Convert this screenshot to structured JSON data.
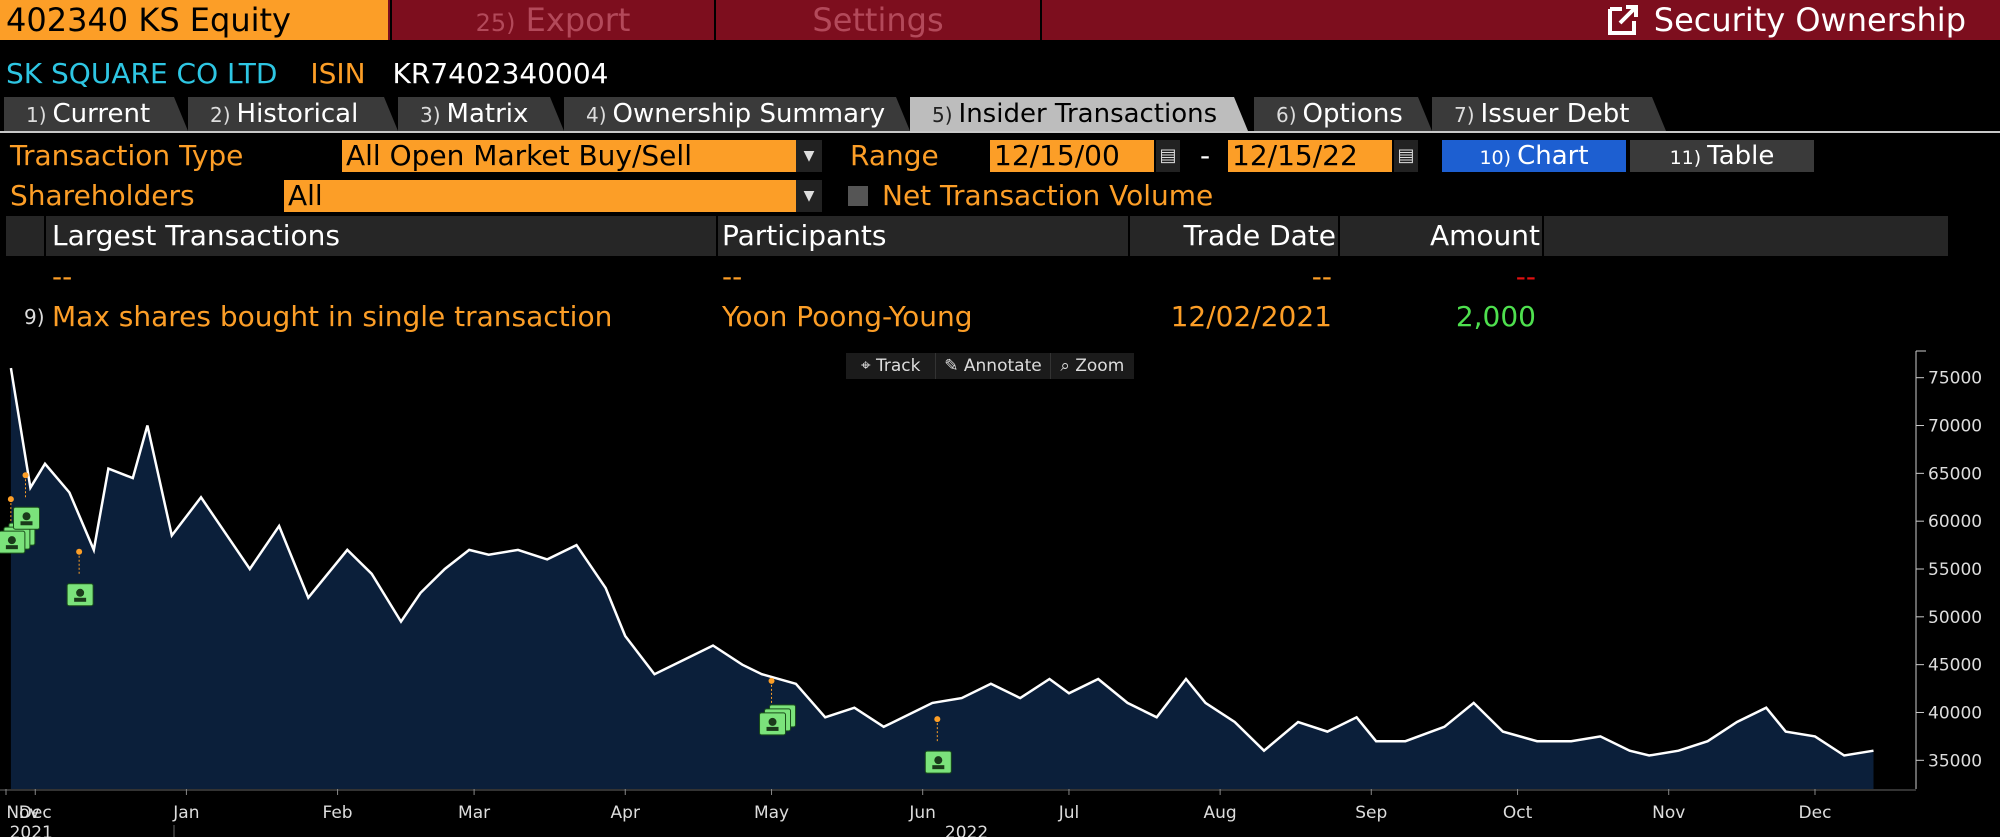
{
  "topbar": {
    "ticker": "402340 KS Equity",
    "export_num": "25)",
    "export_label": "Export",
    "settings_label": "Settings",
    "title": "Security Ownership",
    "title_icon": "external-link-icon",
    "colors": {
      "bar": "#7d0e1e",
      "ticker_bg": "#fc9e27",
      "muted_text": "#b3495a"
    }
  },
  "security": {
    "name": "SK SQUARE CO LTD",
    "isin_label": "ISIN",
    "isin": "KR7402340004"
  },
  "tabs": [
    {
      "num": "1)",
      "label": "Current"
    },
    {
      "num": "2)",
      "label": "Historical"
    },
    {
      "num": "3)",
      "label": "Matrix"
    },
    {
      "num": "4)",
      "label": "Ownership Summary"
    },
    {
      "num": "5)",
      "label": "Insider Transactions",
      "active": true
    },
    {
      "num": "6)",
      "label": "Options"
    },
    {
      "num": "7)",
      "label": "Issuer Debt"
    }
  ],
  "controls": {
    "transaction_type_label": "Transaction Type",
    "transaction_type_value": "All Open Market Buy/Sell",
    "range_label": "Range",
    "range_start": "12/15/00",
    "range_sep": "-",
    "range_end": "12/15/22",
    "chart_num": "10)",
    "chart_label": "Chart",
    "table_num": "11)",
    "table_label": "Table",
    "shareholders_label": "Shareholders",
    "shareholders_value": "All",
    "net_volume_label": "Net Transaction Volume",
    "net_volume_checked": false
  },
  "table": {
    "headers": [
      "Largest Transactions",
      "Participants",
      "Trade Date",
      "Amount"
    ],
    "rows": [
      {
        "num": "",
        "desc": "--",
        "participant": "--",
        "date": "--",
        "amount": "--"
      },
      {
        "num": "9)",
        "desc": "Max shares bought in single transaction",
        "participant": "Yoon Poong-Young",
        "date": "12/02/2021",
        "amount": "2,000"
      }
    ],
    "colors": {
      "desc": "#fc9e27",
      "amount_pos": "#4ee04e",
      "amount_neg": "#e01010"
    }
  },
  "chart_toolbar": {
    "track": "Track",
    "annotate": "Annotate",
    "zoom": "Zoom"
  },
  "chart_data": {
    "type": "area",
    "series": [
      {
        "dates": [
          "2021-11-26",
          "2021-11-30",
          "2021-12-03",
          "2021-12-08",
          "2021-12-13",
          "2021-12-16",
          "2021-12-21",
          "2021-12-24",
          "2021-12-29",
          "2022-01-04",
          "2022-01-10",
          "2022-01-14",
          "2022-01-20",
          "2022-01-26",
          "2022-02-03",
          "2022-02-08",
          "2022-02-14",
          "2022-02-18",
          "2022-02-23",
          "2022-02-28",
          "2022-03-04",
          "2022-03-10",
          "2022-03-16",
          "2022-03-22",
          "2022-03-28",
          "2022-04-01",
          "2022-04-07",
          "2022-04-13",
          "2022-04-19",
          "2022-04-25",
          "2022-04-29",
          "2022-05-06",
          "2022-05-12",
          "2022-05-18",
          "2022-05-24",
          "2022-05-30",
          "2022-06-03",
          "2022-06-09",
          "2022-06-15",
          "2022-06-21",
          "2022-06-27",
          "2022-07-01",
          "2022-07-07",
          "2022-07-13",
          "2022-07-19",
          "2022-07-25",
          "2022-07-29",
          "2022-08-04",
          "2022-08-10",
          "2022-08-17",
          "2022-08-23",
          "2022-08-29",
          "2022-09-02",
          "2022-09-08",
          "2022-09-16",
          "2022-09-22",
          "2022-09-28",
          "2022-10-05",
          "2022-10-12",
          "2022-10-18",
          "2022-10-24",
          "2022-10-28",
          "2022-11-03",
          "2022-11-09",
          "2022-11-15",
          "2022-11-21",
          "2022-11-25",
          "2022-12-01",
          "2022-12-07",
          "2022-12-13"
        ],
        "values": [
          76000,
          63500,
          66000,
          63000,
          57000,
          65500,
          64500,
          70000,
          58500,
          62500,
          58000,
          55000,
          59500,
          52000,
          57000,
          54500,
          49500,
          52500,
          55000,
          57000,
          56500,
          57000,
          56000,
          57500,
          53000,
          48000,
          44000,
          45500,
          47000,
          45000,
          44000,
          43000,
          39500,
          40500,
          38500,
          40000,
          41000,
          41500,
          43000,
          41500,
          43500,
          42000,
          43500,
          41000,
          39500,
          43500,
          41000,
          39000,
          36000,
          39000,
          38000,
          39500,
          37000,
          37000,
          38500,
          41000,
          38000,
          37000,
          37000,
          37500,
          36000,
          35500,
          36000,
          37000,
          39000,
          40500,
          38000,
          37500,
          35500,
          36000
        ]
      }
    ],
    "x_ticks": [
      "Nov",
      "Dec",
      "Jan",
      "Feb",
      "Mar",
      "Apr",
      "May",
      "Jun",
      "Jul",
      "Aug",
      "Sep",
      "Oct",
      "Nov",
      "Dec"
    ],
    "x_year_labels": [
      "2021",
      "2022"
    ],
    "y_ticks": [
      35000,
      40000,
      45000,
      50000,
      55000,
      60000,
      65000,
      70000,
      75000
    ],
    "ylim": [
      32000,
      78000
    ],
    "xlim": [
      "2021-11-25",
      "2022-12-17"
    ],
    "transaction_markers": [
      {
        "date": "2021-11-26",
        "value": 60000,
        "count": 3
      },
      {
        "date": "2021-11-29",
        "value": 62500,
        "count": 1
      },
      {
        "date": "2021-12-10",
        "value": 54500,
        "count": 1
      },
      {
        "date": "2022-05-01",
        "value": 41000,
        "count": 3
      },
      {
        "date": "2022-06-04",
        "value": 37000,
        "count": 1
      }
    ],
    "grid": false,
    "axis_side": "right",
    "colors": {
      "line": "#ffffff",
      "fill": "#0b1f3a",
      "marker": "#7be37b",
      "marker_dot": "#fc9e27"
    }
  }
}
